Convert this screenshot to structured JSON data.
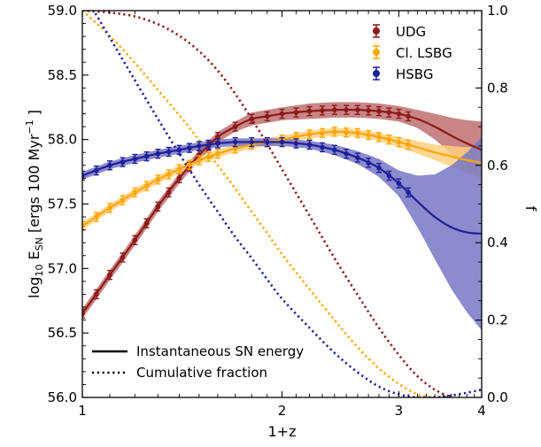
{
  "chart_data": {
    "type": "line",
    "xlabel": "1+z",
    "ylabel_left": "log10 E_SN [ergs 100 Myr^-1]",
    "ylabel_right": "f",
    "xscale": "log",
    "xlim": [
      1,
      4
    ],
    "ylim_left": [
      56.0,
      59.0
    ],
    "ylim_right": [
      0.0,
      1.0
    ],
    "xticks": [
      1,
      2,
      3,
      4
    ],
    "xtick_labels": [
      "1",
      "2",
      "3",
      "4"
    ],
    "yticks_left": [
      56.0,
      56.5,
      57.0,
      57.5,
      58.0,
      58.5,
      59.0
    ],
    "ytick_labels_left": [
      "56.0",
      "56.5",
      "57.0",
      "57.5",
      "58.0",
      "58.5",
      "59.0"
    ],
    "yticks_right": [
      0.0,
      0.2,
      0.4,
      0.6,
      0.8,
      1.0
    ],
    "ytick_labels_right": [
      "0.0",
      "0.2",
      "0.4",
      "0.6",
      "0.8",
      "1.0"
    ],
    "grid": false,
    "legend_placement": "top-right",
    "style_legend_placement": "bottom-left",
    "style_legend": [
      {
        "label": "Instantaneous SN energy",
        "style": "solid"
      },
      {
        "label": "Cumulative fraction",
        "style": "dotted"
      }
    ],
    "series": [
      {
        "name": "UDG",
        "color": "#8b1a1a",
        "band_color": "#c07070",
        "energy": {
          "x": [
            1.0,
            1.1,
            1.2,
            1.3,
            1.4,
            1.5,
            1.6,
            1.7,
            1.8,
            1.9,
            2.0,
            2.2,
            2.4,
            2.6,
            2.8,
            3.0,
            3.2,
            3.4,
            3.6,
            3.8,
            4.0
          ],
          "y": [
            56.65,
            56.95,
            57.22,
            57.48,
            57.7,
            57.88,
            58.02,
            58.1,
            58.16,
            58.18,
            58.2,
            58.22,
            58.23,
            58.23,
            58.22,
            58.2,
            58.16,
            58.1,
            58.03,
            57.97,
            57.92
          ],
          "band": [
            0.04,
            0.04,
            0.04,
            0.04,
            0.04,
            0.04,
            0.04,
            0.04,
            0.05,
            0.05,
            0.05,
            0.06,
            0.06,
            0.06,
            0.06,
            0.06,
            0.07,
            0.1,
            0.14,
            0.18,
            0.22
          ],
          "marker_x": [
            1.0,
            1.05,
            1.1,
            1.15,
            1.2,
            1.25,
            1.3,
            1.35,
            1.4,
            1.45,
            1.5,
            1.55,
            1.6,
            1.7,
            1.8,
            1.9,
            2.0,
            2.1,
            2.2,
            2.3,
            2.4,
            2.5,
            2.6,
            2.7,
            2.8,
            2.9,
            3.0,
            3.1
          ]
        },
        "fraction": {
          "x": [
            1.0,
            1.1,
            1.2,
            1.3,
            1.4,
            1.5,
            1.6,
            1.7,
            1.8,
            1.9,
            2.0,
            2.2,
            2.4,
            2.6,
            2.8,
            3.0,
            3.2,
            3.4,
            3.6
          ],
          "y": [
            1.0,
            0.995,
            0.985,
            0.965,
            0.935,
            0.895,
            0.845,
            0.785,
            0.72,
            0.655,
            0.59,
            0.47,
            0.36,
            0.265,
            0.18,
            0.11,
            0.055,
            0.02,
            0.0
          ]
        }
      },
      {
        "name": "Cl. LSBG",
        "color": "#ffa500",
        "band_color": "#ffd080",
        "energy": {
          "x": [
            1.0,
            1.1,
            1.2,
            1.3,
            1.4,
            1.5,
            1.6,
            1.7,
            1.8,
            1.9,
            2.0,
            2.2,
            2.4,
            2.6,
            2.8,
            3.0,
            3.2,
            3.4,
            3.6,
            3.8,
            4.0
          ],
          "y": [
            57.33,
            57.47,
            57.59,
            57.69,
            57.77,
            57.84,
            57.89,
            57.93,
            57.96,
            57.98,
            58.0,
            58.04,
            58.06,
            58.05,
            58.02,
            57.98,
            57.94,
            57.9,
            57.87,
            57.84,
            57.82
          ],
          "band": [
            0.03,
            0.03,
            0.03,
            0.03,
            0.03,
            0.03,
            0.03,
            0.03,
            0.03,
            0.03,
            0.03,
            0.03,
            0.03,
            0.03,
            0.03,
            0.04,
            0.05,
            0.06,
            0.08,
            0.1,
            0.12
          ],
          "marker_x": [
            1.0,
            1.05,
            1.1,
            1.15,
            1.2,
            1.25,
            1.3,
            1.35,
            1.4,
            1.45,
            1.5,
            1.55,
            1.6,
            1.7,
            1.8,
            1.9,
            2.0,
            2.1,
            2.2,
            2.3,
            2.4,
            2.5,
            2.6,
            2.7,
            2.8,
            2.9,
            3.0,
            3.1
          ]
        },
        "fraction": {
          "x": [
            1.0,
            1.1,
            1.2,
            1.3,
            1.4,
            1.5,
            1.6,
            1.7,
            1.8,
            1.9,
            2.0,
            2.2,
            2.4,
            2.6,
            2.8,
            3.0,
            3.2,
            3.4
          ],
          "y": [
            1.0,
            0.935,
            0.865,
            0.795,
            0.73,
            0.665,
            0.6,
            0.54,
            0.48,
            0.425,
            0.37,
            0.28,
            0.2,
            0.13,
            0.075,
            0.035,
            0.008,
            0.0
          ]
        }
      },
      {
        "name": "HSBG",
        "color": "#1f1f99",
        "band_color": "#7777c4",
        "energy": {
          "x": [
            1.0,
            1.1,
            1.2,
            1.3,
            1.4,
            1.5,
            1.6,
            1.7,
            1.8,
            1.9,
            2.0,
            2.2,
            2.4,
            2.6,
            2.8,
            3.0,
            3.2,
            3.4,
            3.6,
            3.8,
            4.0
          ],
          "y": [
            57.72,
            57.8,
            57.85,
            57.89,
            57.92,
            57.95,
            57.97,
            57.98,
            57.98,
            57.98,
            57.98,
            57.96,
            57.92,
            57.86,
            57.78,
            57.66,
            57.52,
            57.4,
            57.32,
            57.28,
            57.27
          ],
          "band": [
            0.03,
            0.03,
            0.03,
            0.03,
            0.03,
            0.03,
            0.03,
            0.03,
            0.03,
            0.03,
            0.03,
            0.03,
            0.04,
            0.05,
            0.07,
            0.1,
            0.2,
            0.33,
            0.48,
            0.62,
            0.75
          ],
          "marker_x": [
            1.0,
            1.05,
            1.1,
            1.15,
            1.2,
            1.25,
            1.3,
            1.35,
            1.4,
            1.45,
            1.5,
            1.55,
            1.6,
            1.7,
            1.8,
            1.9,
            2.0,
            2.1,
            2.2,
            2.3,
            2.4,
            2.5,
            2.6,
            2.7,
            2.8,
            2.9,
            3.0,
            3.1
          ]
        },
        "fraction": {
          "x": [
            1.0,
            1.1,
            1.2,
            1.3,
            1.4,
            1.5,
            1.6,
            1.7,
            1.8,
            1.9,
            2.0,
            2.2,
            2.4,
            2.6,
            2.8,
            3.0,
            3.2,
            3.4,
            3.6,
            3.8,
            4.0
          ],
          "y": [
            1.05,
            0.93,
            0.82,
            0.72,
            0.63,
            0.55,
            0.48,
            0.415,
            0.36,
            0.305,
            0.255,
            0.18,
            0.115,
            0.065,
            0.028,
            0.008,
            0.0,
            0.0,
            0.005,
            0.012,
            0.02
          ]
        }
      }
    ]
  }
}
